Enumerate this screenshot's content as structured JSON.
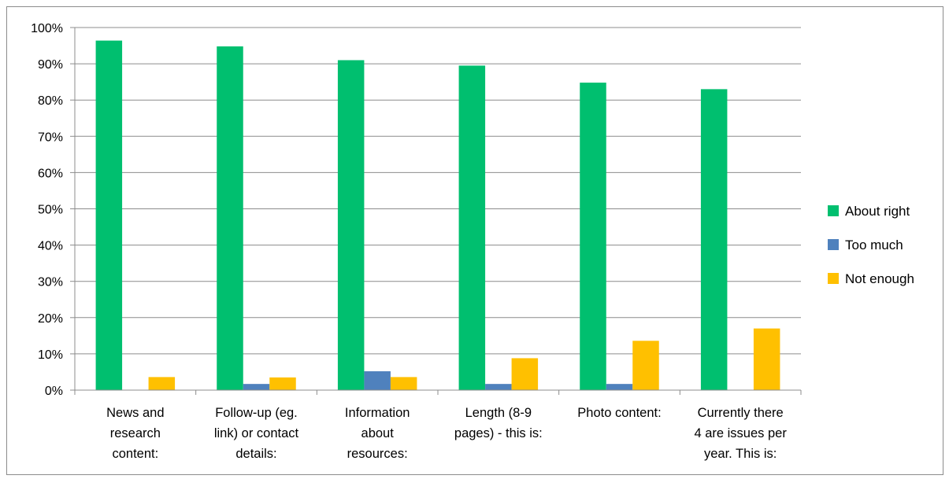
{
  "chart_data": {
    "type": "bar",
    "title": "",
    "xlabel": "",
    "ylabel": "",
    "ylim": [
      0,
      100
    ],
    "yticks": [
      "0%",
      "10%",
      "20%",
      "30%",
      "40%",
      "50%",
      "60%",
      "70%",
      "80%",
      "90%",
      "100%"
    ],
    "grid": true,
    "legend_position": "right",
    "categories": [
      [
        "News and",
        "research",
        "content:"
      ],
      [
        "Follow-up (eg.",
        "link) or contact",
        "details:"
      ],
      [
        "Information",
        "about",
        "resources:"
      ],
      [
        "Length (8-9",
        "pages) - this is:"
      ],
      [
        "Photo content:"
      ],
      [
        "Currently there",
        "4 are issues per",
        "year. This is:"
      ]
    ],
    "series": [
      {
        "name": "About right",
        "color": "#00BF6F",
        "values": [
          96.4,
          94.8,
          91.0,
          89.5,
          84.8,
          83.0
        ]
      },
      {
        "name": "Too much",
        "color": "#4F81BD",
        "values": [
          0,
          1.7,
          5.2,
          1.7,
          1.7,
          0
        ]
      },
      {
        "name": "Not enough",
        "color": "#FFC000",
        "values": [
          3.6,
          3.5,
          3.6,
          8.8,
          13.6,
          17.0
        ]
      }
    ]
  }
}
